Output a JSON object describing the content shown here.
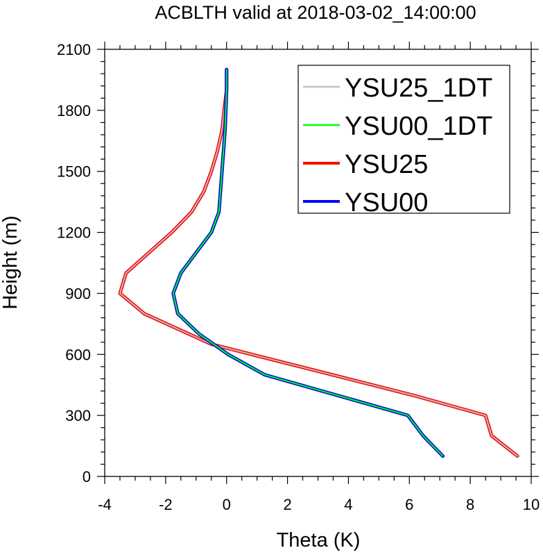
{
  "chart_data": {
    "type": "line",
    "title": "ACBLTH valid at 2018-03-02_14:00:00",
    "xlabel": "Theta (K)",
    "ylabel": "Height (m)",
    "xlim": [
      -4,
      10
    ],
    "ylim": [
      0,
      2100
    ],
    "x_ticks": [
      -4,
      -2,
      0,
      2,
      4,
      6,
      8,
      10
    ],
    "y_ticks": [
      0,
      300,
      600,
      900,
      1200,
      1500,
      1800,
      2100
    ],
    "grid": false,
    "legend_position": "top-right",
    "series": [
      {
        "name": "YSU25_1DT",
        "color": "#c0c0c0",
        "x": [
          9.55,
          8.7,
          8.5,
          6.1,
          -0.5,
          -2.7,
          -3.5,
          -3.3,
          -1.8,
          -1.15,
          -0.75,
          -0.5,
          -0.3,
          -0.15,
          -0.08,
          0.0,
          0.0
        ],
        "y": [
          100,
          200,
          300,
          400,
          650,
          800,
          900,
          1000,
          1200,
          1300,
          1400,
          1500,
          1600,
          1700,
          1800,
          1900,
          2000
        ]
      },
      {
        "name": "YSU00_1DT",
        "color": "#00ff00",
        "x": [
          7.1,
          6.45,
          5.95,
          1.25,
          0.05,
          -0.9,
          -1.6,
          -1.75,
          -1.5,
          -0.5,
          -0.25,
          -0.15,
          -0.1,
          -0.05,
          0.0,
          0.0
        ],
        "y": [
          100,
          200,
          300,
          500,
          600,
          700,
          800,
          900,
          1000,
          1200,
          1300,
          1500,
          1600,
          1700,
          1900,
          2000
        ]
      },
      {
        "name": "YSU25",
        "color": "#ff0000",
        "x": [
          9.55,
          8.7,
          8.5,
          6.1,
          -0.5,
          -2.7,
          -3.5,
          -3.3,
          -1.8,
          -1.15,
          -0.75,
          -0.5,
          -0.3,
          -0.15,
          -0.08,
          0.0,
          0.0
        ],
        "y": [
          100,
          200,
          300,
          400,
          650,
          800,
          900,
          1000,
          1200,
          1300,
          1400,
          1500,
          1600,
          1700,
          1800,
          1900,
          2000
        ]
      },
      {
        "name": "YSU00",
        "color": "#0000ff",
        "x": [
          7.1,
          6.45,
          5.95,
          1.25,
          0.05,
          -0.9,
          -1.6,
          -1.75,
          -1.5,
          -0.5,
          -0.25,
          -0.15,
          -0.1,
          -0.05,
          0.0,
          0.0
        ],
        "y": [
          100,
          200,
          300,
          500,
          600,
          700,
          800,
          900,
          1000,
          1200,
          1300,
          1500,
          1600,
          1700,
          1900,
          2000
        ]
      }
    ],
    "legend_entries": [
      "YSU25_1DT",
      "YSU00_1DT",
      "YSU25",
      "YSU00"
    ]
  }
}
